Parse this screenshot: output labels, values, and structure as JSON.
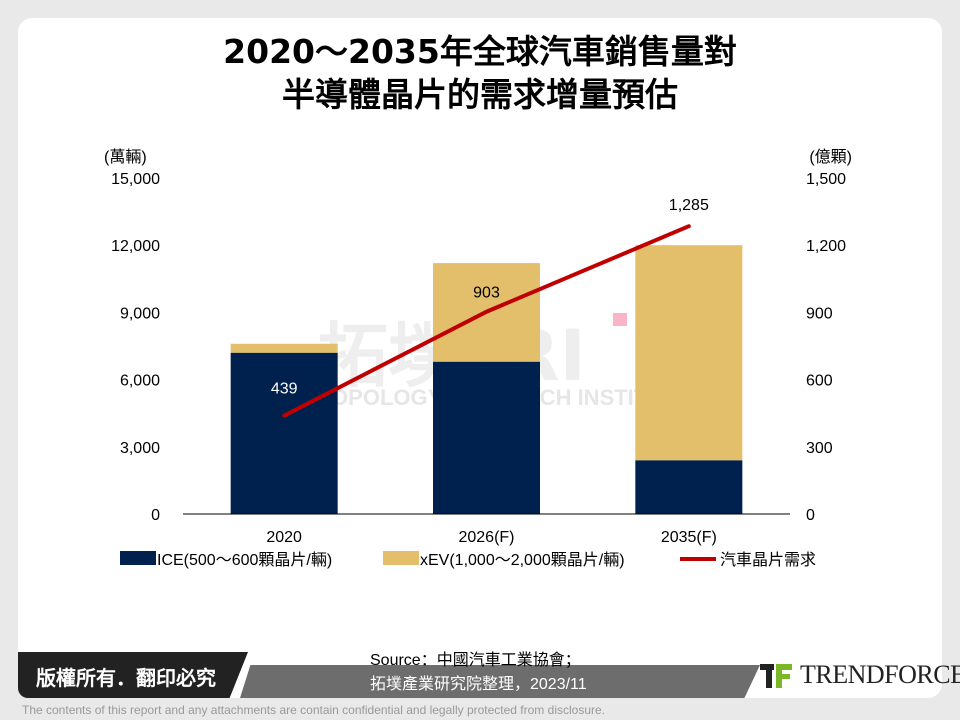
{
  "title_line1": "2020～2035年全球汽車銷售量對",
  "title_line2": "半導體晶片的需求增量預估",
  "chart_data": {
    "type": "bar+line",
    "categories": [
      "2020",
      "2026(F)",
      "2035(F)"
    ],
    "left_axis": {
      "unit": "(萬輛)",
      "ticks": [
        "0",
        "3,000",
        "6,000",
        "9,000",
        "12,000",
        "15,000"
      ],
      "ylim": [
        0,
        15000
      ]
    },
    "right_axis": {
      "unit": "(億顆)",
      "ticks": [
        "0",
        "300",
        "600",
        "900",
        "1,200",
        "1,500"
      ],
      "ylim": [
        0,
        1500
      ]
    },
    "series": [
      {
        "name": "ICE(500～600顆晶片/輛)",
        "type": "stacked-bar",
        "axis": "left",
        "color": "#00204e",
        "values": [
          7200,
          6800,
          2400
        ]
      },
      {
        "name": "xEV(1,000～2,000顆晶片/輛)",
        "type": "stacked-bar",
        "axis": "left",
        "color": "#e4bf6b",
        "values": [
          400,
          4400,
          9600
        ]
      },
      {
        "name": "汽車晶片需求",
        "type": "line",
        "axis": "right",
        "color": "#c00000",
        "values": [
          439,
          903,
          1285
        ],
        "labels": [
          "439",
          "903",
          "1,285"
        ]
      }
    ]
  },
  "watermark": {
    "cn": "拓墣TRI",
    "en": "TOPOLOGY RESEARCH INSTITUTE"
  },
  "footer": {
    "copyright": "版權所有．翻印必究",
    "source_line1": "Source：中國汽車工業協會；",
    "source_line2": "拓墣產業研究院整理，2023/11",
    "logo": "TRENDFORCE"
  },
  "disclaimer": "The contents of this report and any attachments are contain confidential and legally protected from disclosure."
}
